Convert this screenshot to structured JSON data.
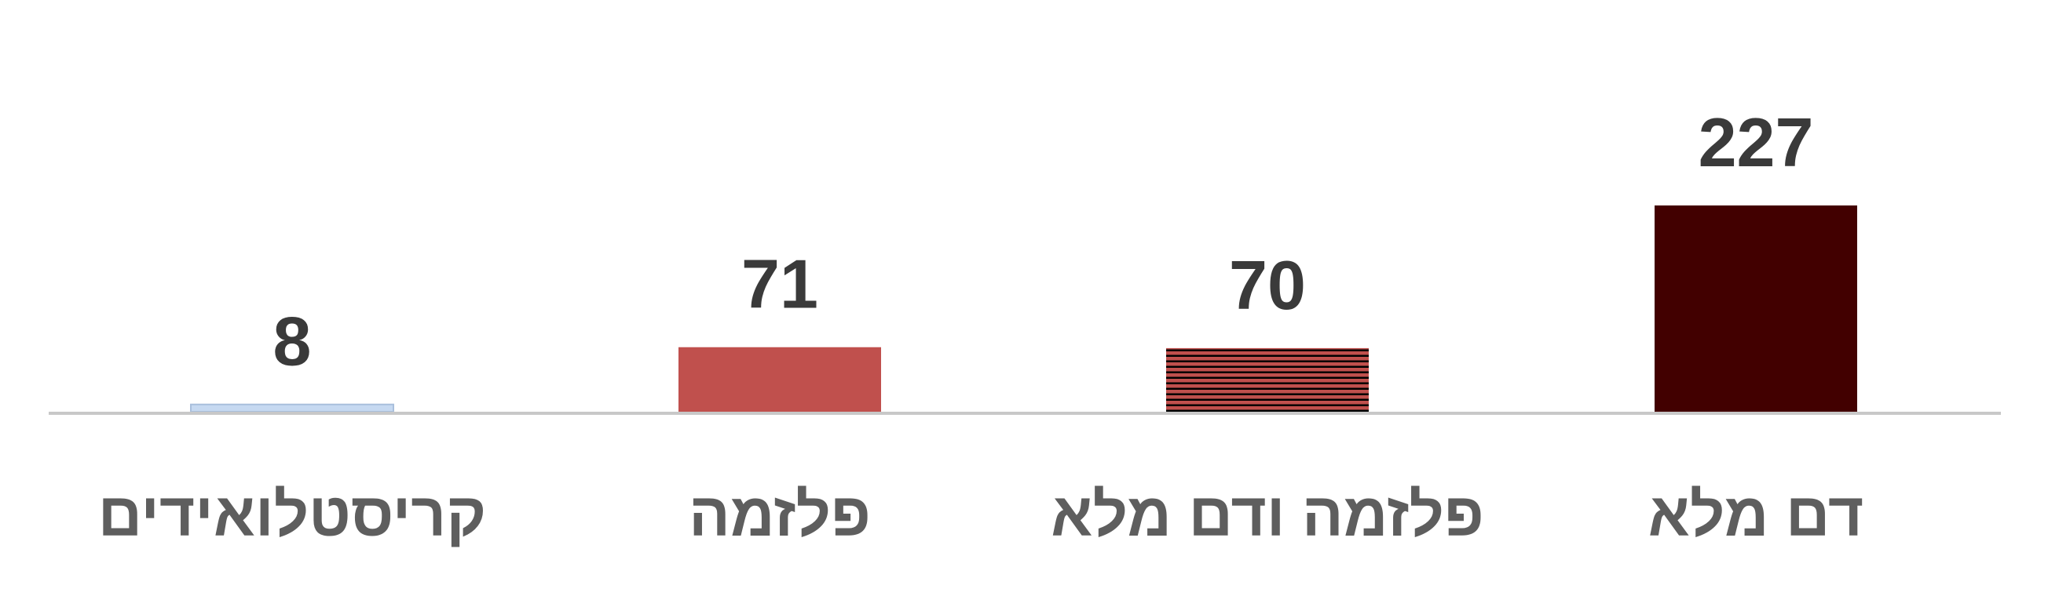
{
  "chart_data": {
    "type": "bar",
    "direction": "rtl",
    "categories": [
      "דם מלא",
      "פלזמה ודם מלא",
      "פלזמה",
      "קריסטלואידים"
    ],
    "values": [
      227,
      70,
      71,
      8
    ],
    "bar_styles": [
      {
        "fill": "#420000",
        "pattern": "solid"
      },
      {
        "fill": "#c0504d",
        "pattern": "horizontal-stripes",
        "stripe_color": "#000000"
      },
      {
        "fill": "#c0504d",
        "pattern": "solid"
      },
      {
        "fill": "#c6d9f1",
        "pattern": "solid"
      }
    ],
    "title": "",
    "xlabel": "",
    "ylabel": "",
    "ylim": [
      0,
      227
    ],
    "grid": false,
    "legend": "none"
  }
}
